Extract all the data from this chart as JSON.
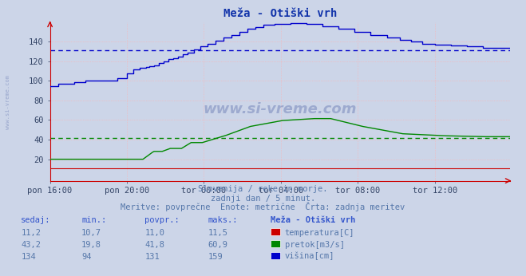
{
  "title": "Meža - Otiški vrh",
  "background_color": "#ccd5e8",
  "plot_bg_color": "#ccd5e8",
  "grid_color": "#ffb0b0",
  "xlim": [
    0,
    287
  ],
  "ylim": [
    -2,
    160
  ],
  "yticks": [
    20,
    40,
    60,
    80,
    100,
    120,
    140
  ],
  "xtick_labels": [
    "pon 16:00",
    "pon 20:00",
    "tor 00:00",
    "tor 04:00",
    "tor 08:00",
    "tor 12:00"
  ],
  "xtick_positions": [
    0,
    48,
    96,
    144,
    192,
    240
  ],
  "avg_blue": 131,
  "avg_green": 41.8,
  "subtitle1": "Slovenija / reke in morje.",
  "subtitle2": "zadnji dan / 5 minut.",
  "subtitle3": "Meritve: povprečne  Enote: metrične  Črta: zadnja meritev",
  "table_headers": [
    "sedaj:",
    "min.:",
    "povpr.:",
    "maks.:",
    "Meža - Otiški vrh"
  ],
  "table_row1": [
    "11,2",
    "10,7",
    "11,0",
    "11,5",
    "temperatura[C]"
  ],
  "table_row2": [
    "43,2",
    "19,8",
    "41,8",
    "60,9",
    "pretok[m3/s]"
  ],
  "table_row3": [
    "134",
    "94",
    "131",
    "159",
    "višina[cm]"
  ],
  "color_temp": "#cc0000",
  "color_flow": "#008800",
  "color_height": "#0000cc",
  "text_color": "#5577aa",
  "header_color": "#3355cc",
  "watermark_color": "#7788bb"
}
